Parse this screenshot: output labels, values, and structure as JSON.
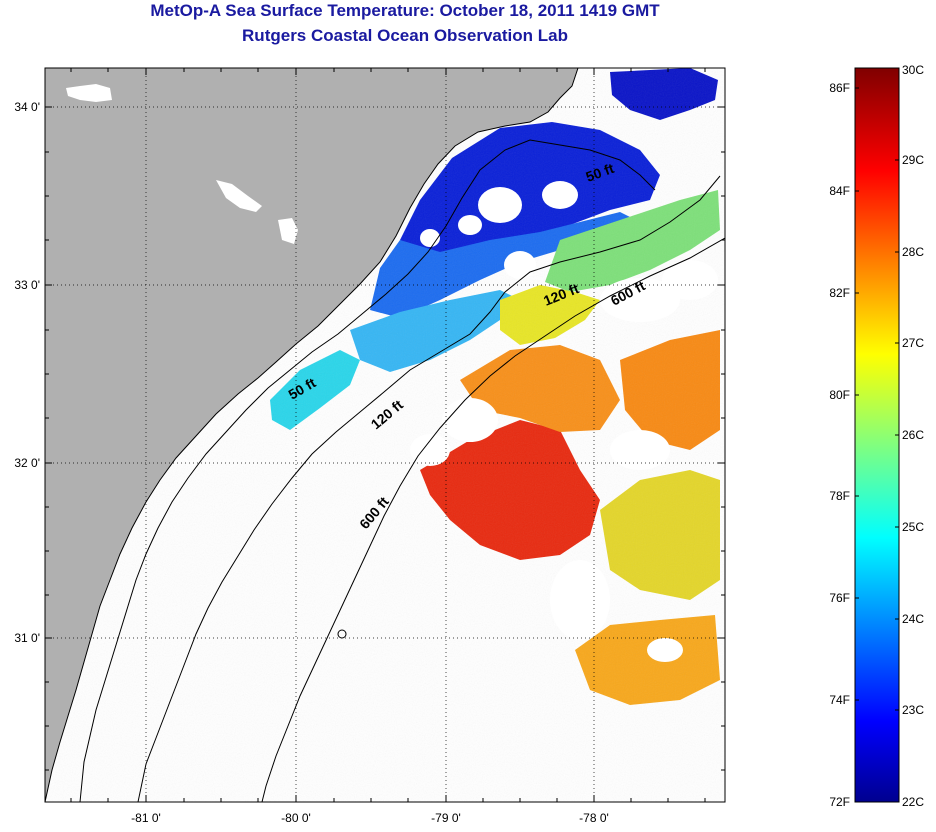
{
  "title": "MetOp-A Sea Surface Temperature:  October 18, 2011 1419 GMT",
  "subtitle": "Rutgers Coastal Ocean Observation Lab",
  "map": {
    "lat_labels": [
      "34 0'",
      "33 0'",
      "32 0'",
      "31 0'"
    ],
    "lon_labels": [
      "-81 0'",
      "-80 0'",
      "-79 0'",
      "-78 0'"
    ],
    "isobath_labels": [
      {
        "text": "50 ft",
        "depth_ft": 50
      },
      {
        "text": "50 ft",
        "depth_ft": 50
      },
      {
        "text": "120 ft",
        "depth_ft": 120
      },
      {
        "text": "120 ft",
        "depth_ft": 120
      },
      {
        "text": "600 ft",
        "depth_ft": 600
      },
      {
        "text": "600 ft",
        "depth_ft": 600
      }
    ],
    "colors": {
      "land": "#b0b0b0",
      "cloud_mask": "#ffffff",
      "grid": "#000000"
    }
  },
  "colorbar": {
    "fahrenheit_labels": [
      "86F",
      "84F",
      "82F",
      "80F",
      "78F",
      "76F",
      "74F",
      "72F"
    ],
    "celsius_labels": [
      "30C",
      "29C",
      "28C",
      "27C",
      "26C",
      "25C",
      "24C",
      "23C",
      "22C"
    ],
    "colormap": "jet",
    "range_c": [
      22,
      30
    ]
  }
}
